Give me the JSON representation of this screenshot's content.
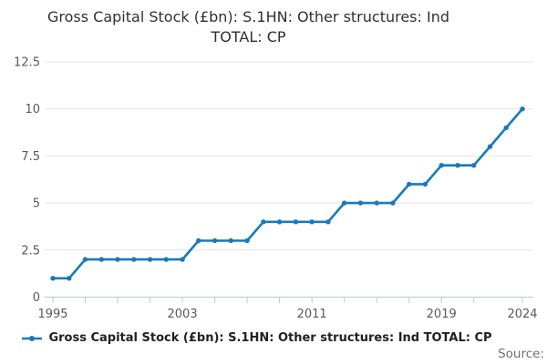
{
  "title": {
    "text": "Gross Capital Stock (£bn): S.1HN: Other structures: Ind TOTAL: CP",
    "lines": [
      "Gross Capital Stock (£bn): S.1HN: Other structures: Ind",
      "TOTAL: CP"
    ]
  },
  "legend": {
    "label": "Gross Capital Stock (£bn): S.1HN: Other structures: Ind TOTAL: CP"
  },
  "footer": {
    "source_label": "Source:"
  },
  "colors": {
    "line": "#1879bf",
    "grid": "#e4e4e4",
    "axis": "#bfc7d6",
    "tick_label": "#595959",
    "title": "#303030",
    "legend_text": "#212121",
    "source_text": "#6f6f6f"
  },
  "chart_data": {
    "type": "line",
    "title": "Gross Capital Stock (£bn): S.1HN: Other structures: Ind TOTAL: CP",
    "x": [
      1995,
      1996,
      1997,
      1998,
      1999,
      2000,
      2001,
      2002,
      2003,
      2004,
      2005,
      2006,
      2007,
      2008,
      2009,
      2010,
      2011,
      2012,
      2013,
      2014,
      2015,
      2016,
      2017,
      2018,
      2019,
      2020,
      2021,
      2022,
      2023,
      2024
    ],
    "series": [
      {
        "name": "Gross Capital Stock (£bn): S.1HN: Other structures: Ind TOTAL: CP",
        "values": [
          1,
          1,
          2,
          2,
          2,
          2,
          2,
          2,
          2,
          3,
          3,
          3,
          3,
          4,
          4,
          4,
          4,
          4,
          5,
          5,
          5,
          5,
          6,
          6,
          7,
          7,
          7,
          8,
          9,
          10
        ]
      }
    ],
    "xlabel": "",
    "ylabel": "",
    "xlim": [
      1995,
      2024
    ],
    "ylim": [
      0,
      12.5
    ],
    "y_ticks": [
      0,
      2.5,
      5,
      7.5,
      10,
      12.5
    ],
    "x_tick_years": [
      1995,
      1997,
      1999,
      2001,
      2003,
      2005,
      2007,
      2009,
      2011,
      2013,
      2015,
      2017,
      2019,
      2021,
      2024
    ],
    "x_label_years": [
      1995,
      2003,
      2011,
      2019,
      2024
    ],
    "grid": "horizontal",
    "legend_position": "bottom",
    "marker": "circle"
  }
}
